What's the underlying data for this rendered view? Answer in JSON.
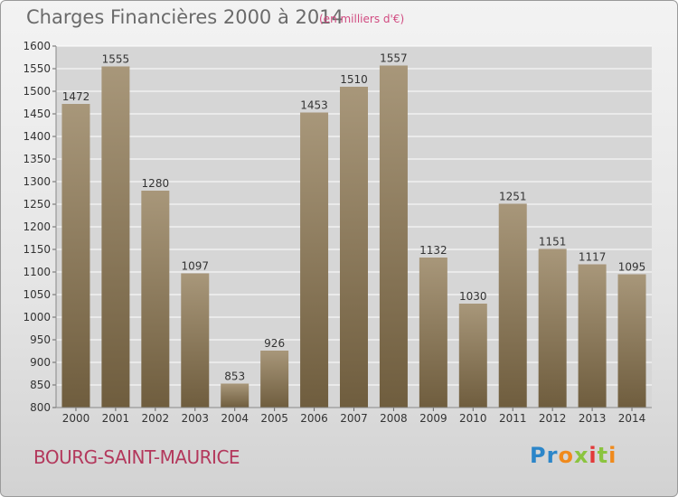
{
  "header": {
    "title": "Charges Financières 2000 à 2014",
    "subtitle": "(en milliers d'€)"
  },
  "footer": {
    "commune": "BOURG-SAINT-MAURICE",
    "logo_text": "Proxiti"
  },
  "colors": {
    "bar_top": "#a8977a",
    "bar_bottom": "#6f5d3e",
    "plot_bg": "#d6d6d6",
    "grid": "#ffffff",
    "title_text": "#6a6a6a",
    "subtitle_text": "#d14a80",
    "commune_text": "#b3385c"
  },
  "chart_data": {
    "type": "bar",
    "categories": [
      "2000",
      "2001",
      "2002",
      "2003",
      "2004",
      "2005",
      "2006",
      "2007",
      "2008",
      "2009",
      "2010",
      "2011",
      "2012",
      "2013",
      "2014"
    ],
    "values": [
      1472,
      1555,
      1280,
      1097,
      853,
      926,
      1453,
      1510,
      1557,
      1132,
      1030,
      1251,
      1151,
      1117,
      1095
    ],
    "ylim": [
      800,
      1600
    ],
    "yticks": [
      800,
      850,
      900,
      950,
      1000,
      1050,
      1100,
      1150,
      1200,
      1250,
      1300,
      1350,
      1400,
      1450,
      1500,
      1550,
      1600
    ],
    "grid": true,
    "legend": "none"
  }
}
